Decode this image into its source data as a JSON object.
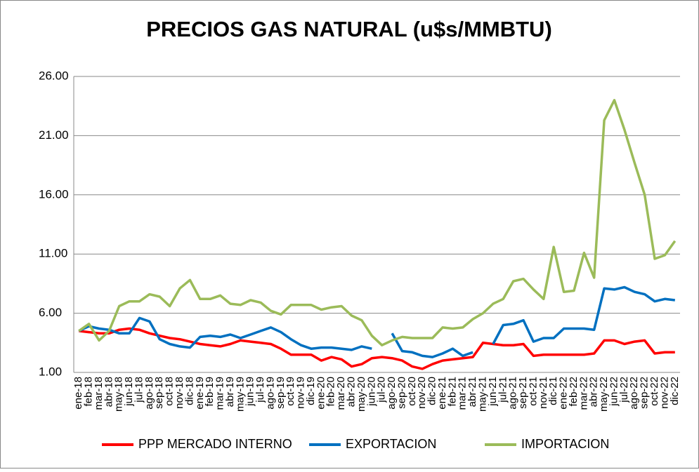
{
  "chart_data": {
    "type": "line",
    "title": "PRECIOS GAS NATURAL (u$s/MMBTU)",
    "categories": [
      "ene-18",
      "feb-18",
      "mar-18",
      "abr-18",
      "may-18",
      "jun-18",
      "jul-18",
      "ago-18",
      "sep-18",
      "oct-18",
      "nov-18",
      "dic-18",
      "ene-19",
      "feb-19",
      "mar-19",
      "abr-19",
      "may-19",
      "jun-19",
      "jul-19",
      "ago-19",
      "sep-19",
      "oct-19",
      "nov-19",
      "dic-19",
      "ene-20",
      "feb-20",
      "mar-20",
      "abr-20",
      "may-20",
      "jun-20",
      "jul-20",
      "ago-20",
      "sep-20",
      "oct-20",
      "nov-20",
      "dic-20",
      "ene-21",
      "feb-21",
      "mar-21",
      "abr-21",
      "may-21",
      "jun-21",
      "jul-21",
      "ago-21",
      "sep-21",
      "oct-21",
      "nov-21",
      "dic-21",
      "ene-22",
      "feb-22",
      "mar-22",
      "abr-22",
      "may-22",
      "jun-22",
      "jul-22",
      "ago-22",
      "sep-22",
      "oct-22",
      "nov-22",
      "dic-22"
    ],
    "series": [
      {
        "name": "PPP MERCADO INTERNO",
        "color": "#ff0000",
        "values": [
          4.5,
          4.4,
          4.3,
          4.3,
          4.6,
          4.7,
          4.6,
          4.3,
          4.1,
          3.9,
          3.8,
          3.6,
          3.4,
          3.3,
          3.2,
          3.4,
          3.7,
          3.6,
          3.5,
          3.4,
          3.0,
          2.5,
          2.5,
          2.5,
          2.0,
          2.3,
          2.1,
          1.5,
          1.7,
          2.2,
          2.3,
          2.2,
          2.0,
          1.5,
          1.3,
          1.7,
          2.0,
          2.1,
          2.2,
          2.3,
          3.5,
          3.4,
          3.3,
          3.3,
          3.4,
          2.4,
          2.5,
          2.5,
          2.5,
          2.5,
          2.5,
          2.6,
          3.7,
          3.7,
          3.4,
          3.6,
          3.7,
          2.6,
          2.7,
          2.7
        ]
      },
      {
        "name": "EXPORTACION",
        "color": "#0070c0",
        "values": [
          4.5,
          4.9,
          4.7,
          4.6,
          4.3,
          4.3,
          5.6,
          5.3,
          3.8,
          3.4,
          3.2,
          3.1,
          4.0,
          4.1,
          4.0,
          4.2,
          3.9,
          4.2,
          4.5,
          4.8,
          4.4,
          3.8,
          3.3,
          3.0,
          3.1,
          3.1,
          3.0,
          2.9,
          3.2,
          3.0,
          null,
          4.3,
          2.8,
          2.7,
          2.4,
          2.3,
          2.6,
          3.0,
          2.4,
          2.7,
          null,
          3.4,
          5.0,
          5.1,
          5.4,
          3.6,
          3.9,
          3.9,
          4.7,
          4.7,
          4.7,
          4.6,
          8.1,
          8.0,
          8.2,
          7.8,
          7.6,
          7.0,
          7.2,
          7.1
        ]
      },
      {
        "name": "IMPORTACION",
        "color": "#9bbb59",
        "values": [
          4.5,
          5.1,
          3.7,
          4.5,
          6.6,
          7.0,
          7.0,
          7.6,
          7.4,
          6.6,
          8.1,
          8.8,
          7.2,
          7.2,
          7.5,
          6.8,
          6.7,
          7.1,
          6.9,
          6.2,
          5.9,
          6.7,
          6.7,
          6.7,
          6.3,
          6.5,
          6.6,
          5.8,
          5.4,
          4.1,
          3.3,
          3.7,
          4.0,
          3.9,
          3.9,
          3.9,
          4.8,
          4.7,
          4.8,
          5.5,
          6.0,
          6.8,
          7.2,
          8.7,
          8.9,
          8.0,
          7.2,
          11.6,
          7.8,
          7.9,
          11.1,
          9.0,
          22.3,
          24.0,
          21.5,
          18.7,
          16.0,
          10.6,
          10.9,
          12.1
        ]
      }
    ],
    "ylim": [
      1,
      26
    ],
    "yticks": [
      {
        "value": 1,
        "label": "1.00"
      },
      {
        "value": 6,
        "label": "6.00"
      },
      {
        "value": 11,
        "label": "11.00"
      },
      {
        "value": 16,
        "label": "16.00"
      },
      {
        "value": 21,
        "label": "21.00"
      },
      {
        "value": 26,
        "label": "26.00"
      }
    ],
    "grid": true
  }
}
